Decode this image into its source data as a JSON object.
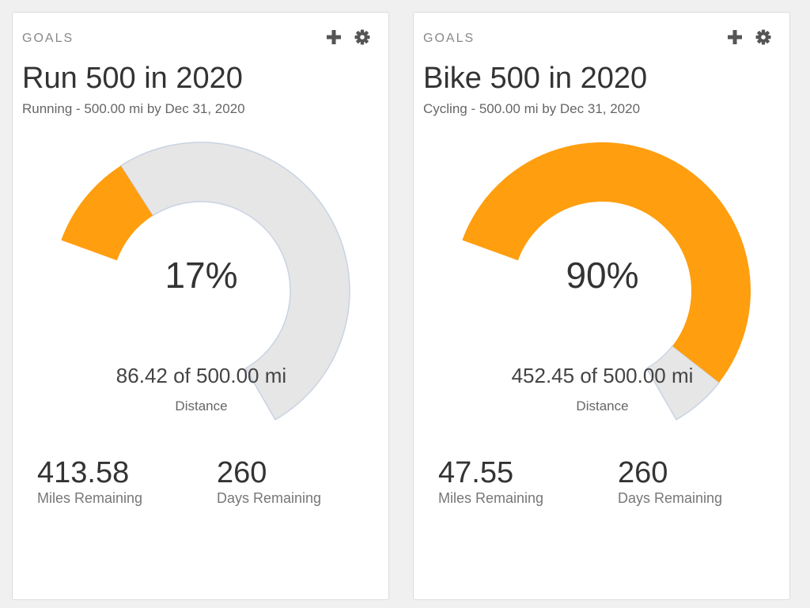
{
  "colors": {
    "accent": "#ff9e0f",
    "track": "#e6e6e6",
    "track_border": "#c9d3e2",
    "icon": "#555555"
  },
  "cards": [
    {
      "header": "GOALS",
      "add_icon": "plus-icon",
      "settings_icon": "gear-icon",
      "title": "Run 500 in 2020",
      "subtitle": "Running - 500.00 mi by Dec 31, 2020",
      "progress_fraction": 0.17,
      "percent_label": "17%",
      "progress_text": "86.42 of 500.00 mi",
      "metric": "Distance",
      "miles_remaining_value": "413.58",
      "miles_remaining_label": "Miles Remaining",
      "days_remaining_value": "260",
      "days_remaining_label": "Days Remaining"
    },
    {
      "header": "GOALS",
      "add_icon": "plus-icon",
      "settings_icon": "gear-icon",
      "title": "Bike 500 in 2020",
      "subtitle": "Cycling - 500.00 mi by Dec 31, 2020",
      "progress_fraction": 0.9,
      "percent_label": "90%",
      "progress_text": "452.45 of 500.00 mi",
      "metric": "Distance",
      "miles_remaining_value": "47.55",
      "miles_remaining_label": "Miles Remaining",
      "days_remaining_value": "260",
      "days_remaining_label": "Days Remaining"
    }
  ]
}
